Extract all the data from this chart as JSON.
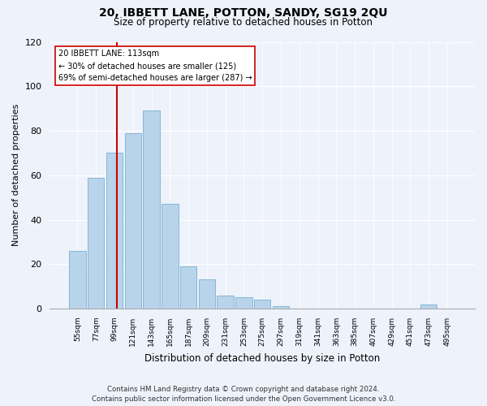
{
  "title": "20, IBBETT LANE, POTTON, SANDY, SG19 2QU",
  "subtitle": "Size of property relative to detached houses in Potton",
  "xlabel": "Distribution of detached houses by size in Potton",
  "ylabel": "Number of detached properties",
  "bin_labels": [
    "55sqm",
    "77sqm",
    "99sqm",
    "121sqm",
    "143sqm",
    "165sqm",
    "187sqm",
    "209sqm",
    "231sqm",
    "253sqm",
    "275sqm",
    "297sqm",
    "319sqm",
    "341sqm",
    "363sqm",
    "385sqm",
    "407sqm",
    "429sqm",
    "451sqm",
    "473sqm",
    "495sqm"
  ],
  "bar_heights": [
    26,
    59,
    70,
    79,
    89,
    47,
    19,
    13,
    6,
    5,
    4,
    1,
    0,
    0,
    0,
    0,
    0,
    0,
    0,
    2,
    0
  ],
  "bar_color": "#b8d4ea",
  "bar_edge_color": "#7aafd4",
  "vline_color": "#cc0000",
  "annotation_line1": "20 IBBETT LANE: 113sqm",
  "annotation_line2": "← 30% of detached houses are smaller (125)",
  "annotation_line3": "69% of semi-detached houses are larger (287) →",
  "annotation_box_color": "#ffffff",
  "annotation_box_edge_color": "#cc0000",
  "ylim": [
    0,
    120
  ],
  "yticks": [
    0,
    20,
    40,
    60,
    80,
    100,
    120
  ],
  "footer_text": "Contains HM Land Registry data © Crown copyright and database right 2024.\nContains public sector information licensed under the Open Government Licence v3.0.",
  "bg_color": "#eef2fb"
}
